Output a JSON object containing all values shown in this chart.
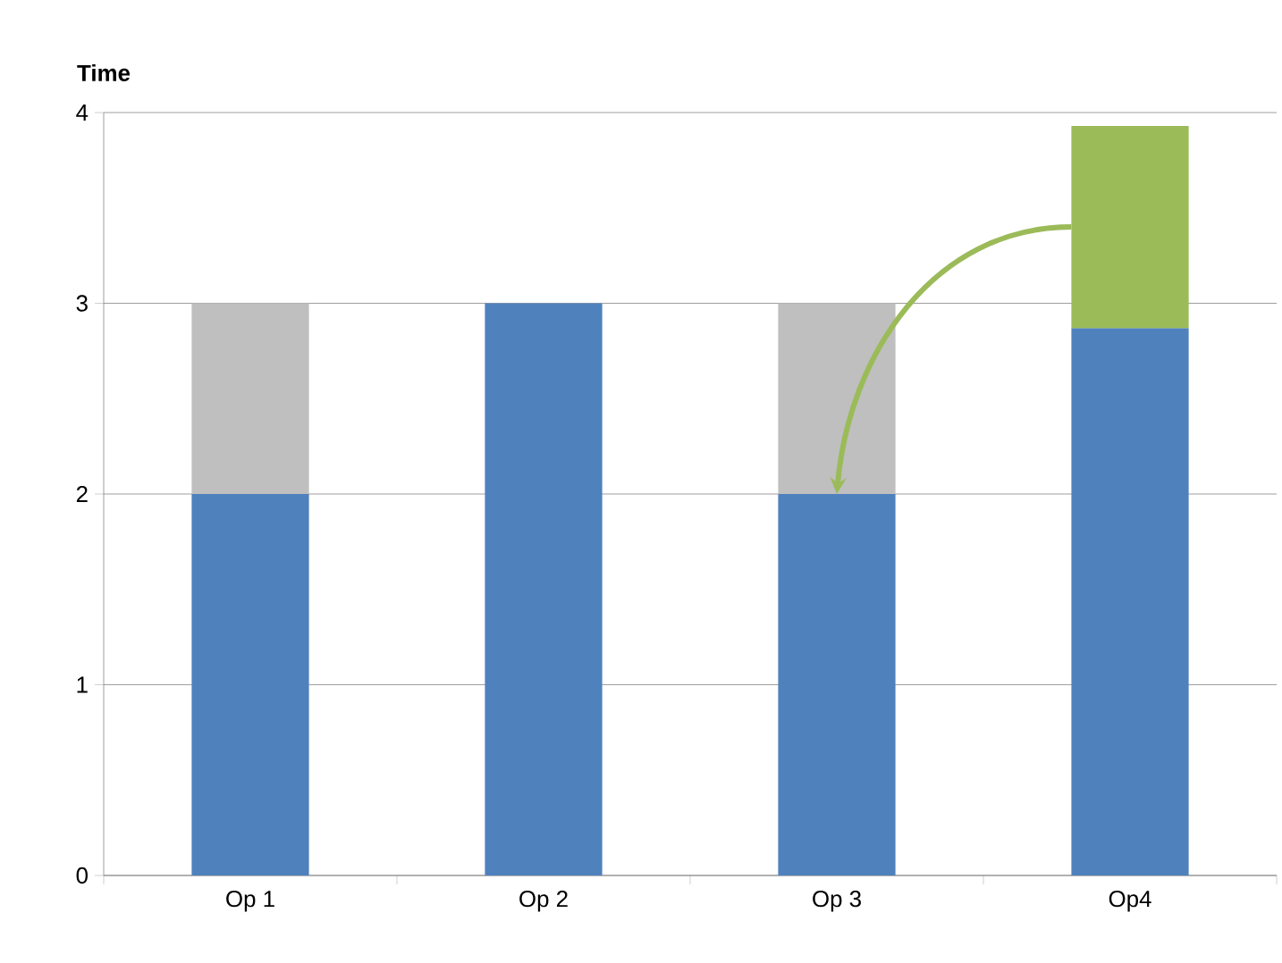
{
  "chart_data": {
    "type": "bar",
    "stacked": true,
    "ylabel": "Time",
    "categories": [
      "Op 1",
      "Op 2",
      "Op 3",
      "Op4"
    ],
    "series": [
      {
        "color": "#4f81bd",
        "values": [
          2,
          3,
          2,
          2.87
        ]
      },
      {
        "color": "#bfbfbf",
        "values": [
          1,
          0,
          1,
          null
        ]
      },
      {
        "color": "#9bbb59",
        "values": [
          null,
          null,
          null,
          1.06
        ]
      }
    ],
    "ylim": [
      0,
      4
    ],
    "yticks": [
      0,
      1,
      2,
      3,
      4
    ],
    "grid": "y"
  }
}
